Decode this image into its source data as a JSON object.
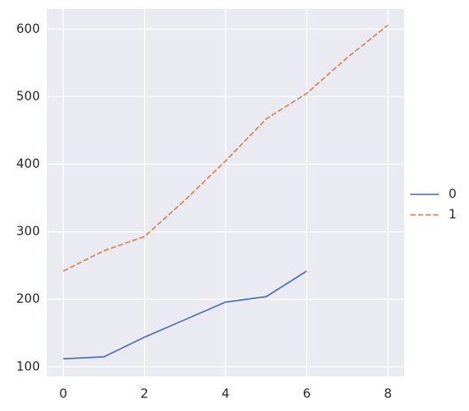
{
  "chart_data": {
    "type": "line",
    "x": [
      0,
      1,
      2,
      3,
      4,
      5,
      6,
      7,
      8
    ],
    "series": [
      {
        "name": "0",
        "color": "#4c72b0",
        "dash": "solid",
        "values": [
          112,
          115,
          144,
          170,
          196,
          204,
          242,
          null,
          null
        ]
      },
      {
        "name": "1",
        "color": "#dd8452",
        "dash": "dashed",
        "values": [
          242,
          272,
          293,
          347,
          405,
          467,
          505,
          558,
          606
        ]
      }
    ],
    "xlim": [
      -0.4,
      8.4
    ],
    "ylim": [
      86,
      630
    ],
    "xticks": [
      0,
      2,
      4,
      6,
      8
    ],
    "yticks": [
      100,
      200,
      300,
      400,
      500,
      600
    ],
    "grid": true,
    "legend": "right"
  }
}
